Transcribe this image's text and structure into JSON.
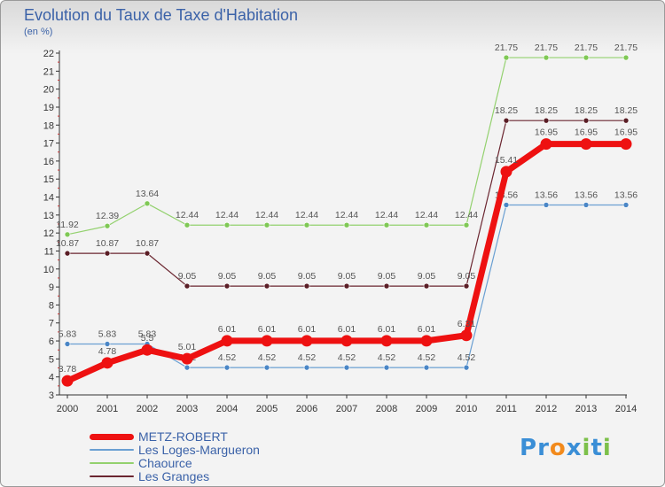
{
  "chart_data": {
    "type": "line",
    "title": "Evolution du Taux de Taxe d'Habitation",
    "subtitle": "(en %)",
    "x": [
      "2000",
      "2001",
      "2002",
      "2003",
      "2004",
      "2005",
      "2006",
      "2007",
      "2008",
      "2009",
      "2010",
      "2011",
      "2012",
      "2013",
      "2014"
    ],
    "ylim": [
      3,
      22
    ],
    "yticks": [
      3,
      4,
      5,
      6,
      7,
      8,
      9,
      10,
      11,
      12,
      13,
      14,
      15,
      16,
      17,
      18,
      19,
      20,
      21,
      22
    ],
    "grid": false,
    "legend_position": "bottom-left",
    "series": [
      {
        "name": "Les Loges-Margueron",
        "color": "#6a9fd2",
        "marker_color": "#4a86c6",
        "width": 1.2,
        "values": [
          5.83,
          5.83,
          5.83,
          4.52,
          4.52,
          4.52,
          4.52,
          4.52,
          4.52,
          4.52,
          4.52,
          13.56,
          13.56,
          13.56,
          13.56
        ],
        "labels": [
          "5.83",
          "5.83",
          "5.83",
          "4.52",
          "4.52",
          "4.52",
          "4.52",
          "4.52",
          "4.52",
          "4.52",
          "4.52",
          "13.56",
          "13.56",
          "13.56",
          "13.56"
        ]
      },
      {
        "name": "Chaource",
        "color": "#93d16e",
        "marker_color": "#7fc855",
        "width": 1.2,
        "values": [
          11.92,
          12.39,
          13.64,
          12.44,
          12.44,
          12.44,
          12.44,
          12.44,
          12.44,
          12.44,
          12.44,
          21.75,
          21.75,
          21.75,
          21.75
        ],
        "labels": [
          "11.92",
          "12.39",
          "13.64",
          "12.44",
          "12.44",
          "12.44",
          "12.44",
          "12.44",
          "12.44",
          "12.44",
          "12.44",
          "21.75",
          "21.75",
          "21.75",
          "21.75"
        ]
      },
      {
        "name": "Les Granges",
        "color": "#6b2630",
        "marker_color": "#5a1d25",
        "width": 1.2,
        "values": [
          10.87,
          10.87,
          10.87,
          9.05,
          9.05,
          9.05,
          9.05,
          9.05,
          9.05,
          9.05,
          9.05,
          18.25,
          18.25,
          18.25,
          18.25
        ],
        "labels": [
          "10.87",
          "10.87",
          "10.87",
          "9.05",
          "9.05",
          "9.05",
          "9.05",
          "9.05",
          "9.05",
          "9.05",
          "9.05",
          "18.25",
          "18.25",
          "18.25",
          "18.25"
        ]
      },
      {
        "name": "METZ-ROBERT",
        "color": "#ee1111",
        "marker_color": "#ee1111",
        "width": 7,
        "values": [
          3.78,
          4.78,
          5.5,
          5.01,
          6.01,
          6.01,
          6.01,
          6.01,
          6.01,
          6.01,
          6.31,
          15.41,
          16.95,
          16.95,
          16.95
        ],
        "labels": [
          "3.78",
          "4.78",
          "5.5",
          "5.01",
          "6.01",
          "6.01",
          "6.01",
          "6.01",
          "6.01",
          "6.01",
          "6.31",
          "15.41",
          "16.95",
          "16.95",
          "16.95"
        ]
      }
    ],
    "legend": [
      {
        "name": "METZ-ROBERT",
        "color": "#ee1111",
        "width": 7
      },
      {
        "name": "Les Loges-Margueron",
        "color": "#6a9fd2",
        "width": 2
      },
      {
        "name": "Chaource",
        "color": "#93d16e",
        "width": 2
      },
      {
        "name": "Les Granges",
        "color": "#6b2630",
        "width": 2
      }
    ]
  },
  "logo": {
    "letters": [
      {
        "ch": "P",
        "color": "#3a8ed6"
      },
      {
        "ch": "r",
        "color": "#3a8ed6"
      },
      {
        "ch": "o",
        "color": "#f28a1c"
      },
      {
        "ch": "x",
        "color": "#3a8ed6"
      },
      {
        "ch": "i",
        "color": "#7cc04a"
      },
      {
        "ch": "t",
        "color": "#3a8ed6"
      },
      {
        "ch": "i",
        "color": "#7cc04a"
      }
    ]
  }
}
